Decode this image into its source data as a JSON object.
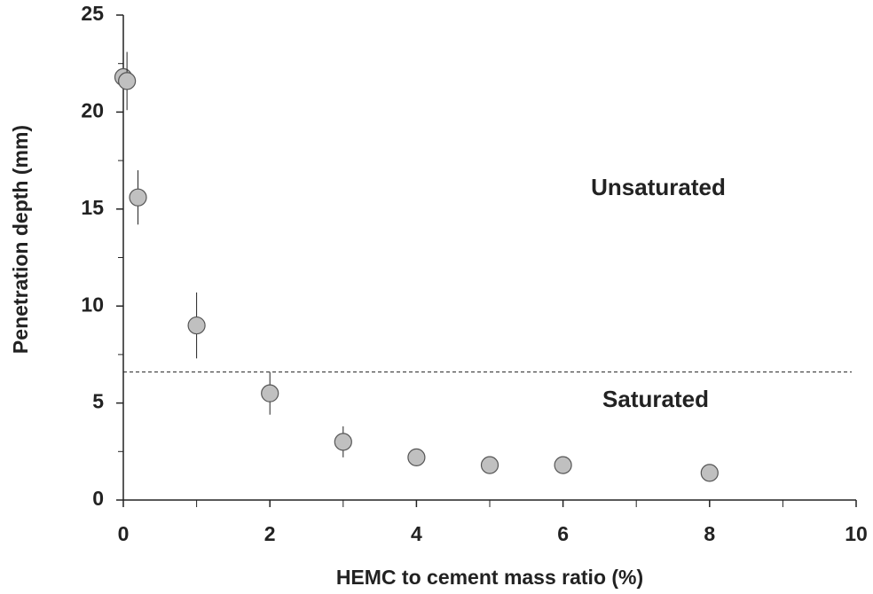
{
  "chart_data": {
    "type": "scatter",
    "x_label": "HEMC to cement mass ratio (%)",
    "y_label": "Penetration depth (mm)",
    "x": [
      0,
      0.05,
      0.2,
      1,
      2,
      3,
      4,
      5,
      6,
      8
    ],
    "values": [
      21.8,
      21.6,
      15.6,
      9.0,
      5.5,
      3.0,
      2.2,
      1.8,
      1.8,
      1.4
    ],
    "errors": [
      1.2,
      1.5,
      1.4,
      1.7,
      1.1,
      0.8,
      0.2,
      0.1,
      0.3,
      0.3
    ],
    "color": "#c0c0c0",
    "xlim": [
      0,
      10
    ],
    "xticks": [
      0,
      2,
      4,
      6,
      8,
      10
    ],
    "x_minor_ticks": [
      1,
      3,
      5,
      7,
      9
    ],
    "ylim": [
      0,
      25
    ],
    "yticks": [
      0,
      5,
      10,
      15,
      20,
      25
    ],
    "y_minor_ticks": [
      2.5,
      7.5,
      12.5,
      17.5,
      22.5
    ],
    "reference_line": 6.6,
    "annotations": [
      "Unsaturated",
      "Saturated"
    ],
    "grid": false
  }
}
